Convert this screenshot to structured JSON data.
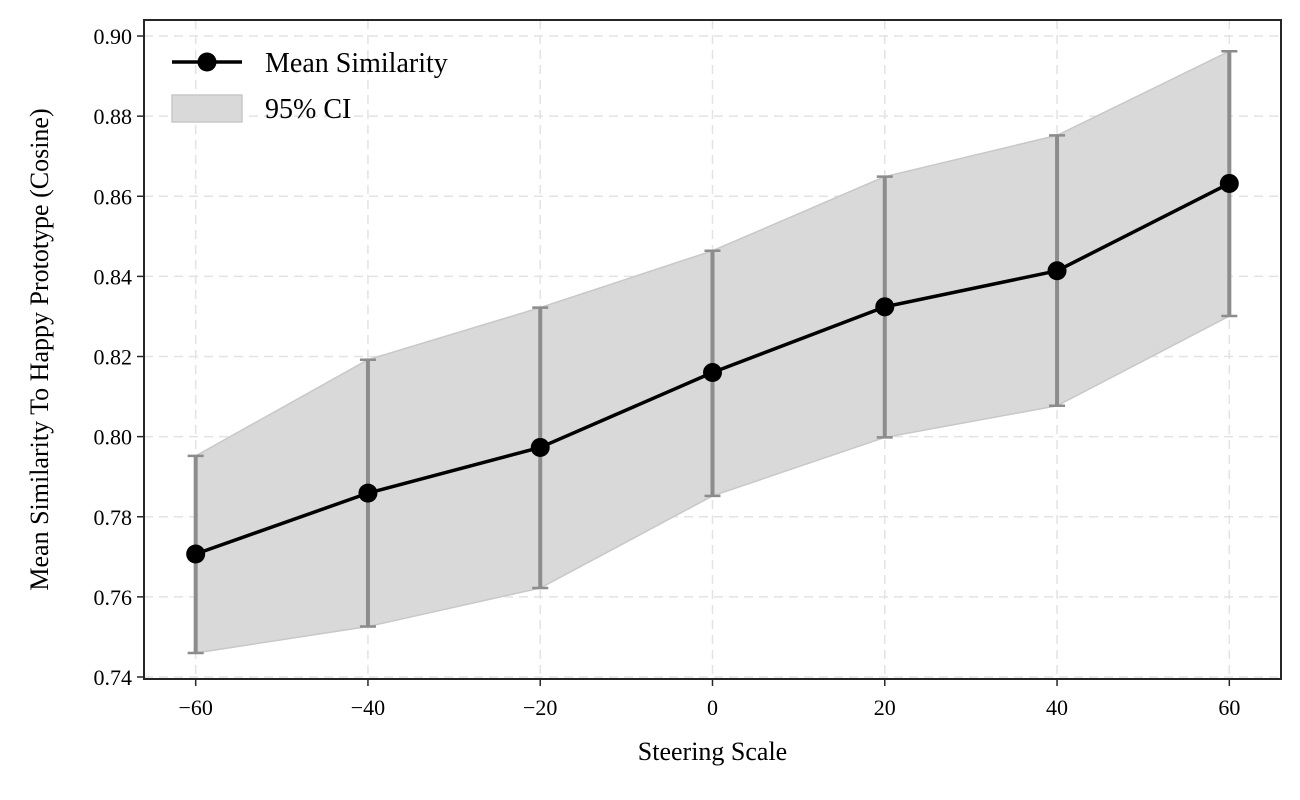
{
  "chart_data": {
    "type": "line",
    "title": "",
    "xlabel": "Steering Scale",
    "ylabel": "Mean Similarity To Happy Prototype (Cosine)",
    "x": [
      -60,
      -40,
      -20,
      0,
      20,
      40,
      60
    ],
    "series": [
      {
        "name": "Mean Similarity",
        "values": [
          0.7707,
          0.7859,
          0.7973,
          0.816,
          0.8324,
          0.8414,
          0.8632
        ],
        "ci_lower": [
          0.746,
          0.7526,
          0.7622,
          0.7852,
          0.7998,
          0.8077,
          0.8301
        ],
        "ci_upper": [
          0.7952,
          0.8192,
          0.8322,
          0.8464,
          0.8649,
          0.8752,
          0.8962
        ]
      }
    ],
    "band_label": "95% CI",
    "xlim": [
      -66,
      66
    ],
    "ylim": [
      0.7395,
      0.904
    ],
    "xticks": [
      -60,
      -40,
      -20,
      0,
      20,
      40,
      60
    ],
    "xtick_labels": [
      "−60",
      "−40",
      "−20",
      "0",
      "20",
      "40",
      "60"
    ],
    "yticks": [
      0.74,
      0.76,
      0.78,
      0.8,
      0.82,
      0.84,
      0.86,
      0.88,
      0.9
    ],
    "ytick_labels": [
      "0.74",
      "0.76",
      "0.78",
      "0.80",
      "0.82",
      "0.84",
      "0.86",
      "0.88",
      "0.90"
    ],
    "grid": true,
    "legend_position": "top-left",
    "colors": {
      "line": "#000000",
      "marker": "#000000",
      "errorbar": "#8c8c8c",
      "band": "#d9d9d9",
      "band_edge": "#c8c8c8",
      "grid": "#e3e3e3"
    }
  }
}
